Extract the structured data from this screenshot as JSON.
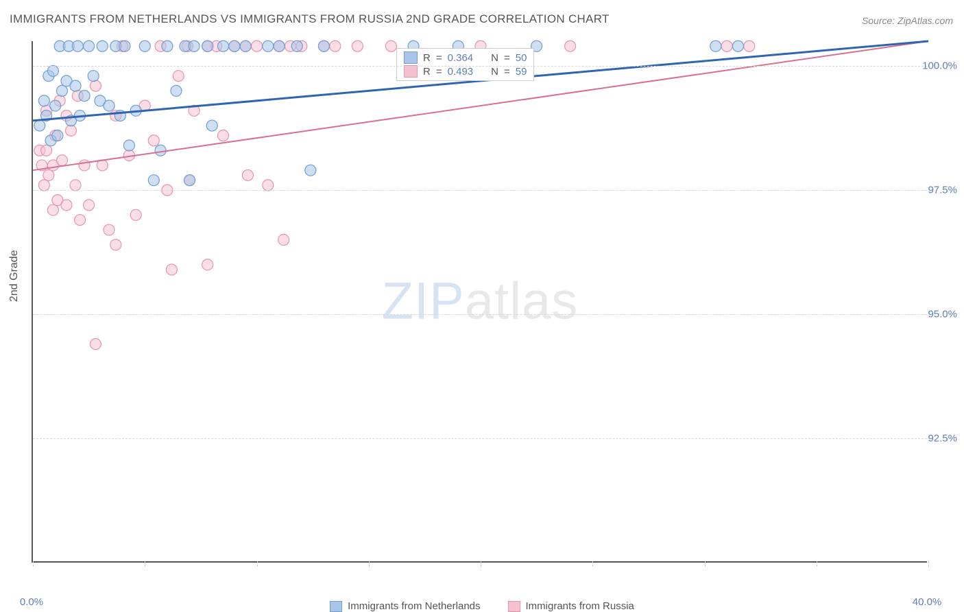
{
  "title": "IMMIGRANTS FROM NETHERLANDS VS IMMIGRANTS FROM RUSSIA 2ND GRADE CORRELATION CHART",
  "source": "Source: ZipAtlas.com",
  "y_axis_label": "2nd Grade",
  "watermark": {
    "part1": "ZIP",
    "part2": "atlas"
  },
  "colors": {
    "series_a_fill": "#a8c5e8",
    "series_a_stroke": "#6f9dd6",
    "series_b_fill": "#f4c2cf",
    "series_b_stroke": "#e893ab",
    "axis": "#555555",
    "grid": "#d8d8d8",
    "tick_text": "#5a7fb8",
    "title_text": "#555555",
    "trend_a": "#2f65b0",
    "trend_b": "#d96e8f",
    "background": "#ffffff"
  },
  "chart": {
    "type": "scatter",
    "xlim": [
      0.0,
      40.0
    ],
    "ylim": [
      90.0,
      100.5
    ],
    "x_ticks": [
      0.0,
      5.0,
      10.0,
      15.0,
      20.0,
      25.0,
      30.0,
      35.0,
      40.0
    ],
    "x_tick_labels": {
      "0": "0.0%",
      "40": "40.0%"
    },
    "y_ticks": [
      92.5,
      95.0,
      97.5,
      100.0
    ],
    "y_tick_labels": [
      "92.5%",
      "95.0%",
      "97.5%",
      "100.0%"
    ],
    "marker_radius": 8,
    "marker_opacity": 0.55,
    "line_width_a": 3,
    "line_width_b": 2,
    "title_fontsize": 17,
    "label_fontsize": 16,
    "tick_fontsize": 15
  },
  "legend_top": {
    "rows": [
      {
        "series": "a",
        "r_label": "R",
        "r_value": "0.364",
        "n_label": "N",
        "n_value": "50"
      },
      {
        "series": "b",
        "r_label": "R",
        "r_value": "0.493",
        "n_label": "N",
        "n_value": "59"
      }
    ]
  },
  "legend_bottom": {
    "items": [
      {
        "series": "a",
        "label": "Immigrants from Netherlands"
      },
      {
        "series": "b",
        "label": "Immigrants from Russia"
      }
    ]
  },
  "series_a": {
    "name": "Immigrants from Netherlands",
    "trend": {
      "x1": 0.0,
      "y1": 98.9,
      "x2": 40.0,
      "y2": 100.5
    },
    "points": [
      [
        0.3,
        98.8
      ],
      [
        0.5,
        99.3
      ],
      [
        0.6,
        99.0
      ],
      [
        0.7,
        99.8
      ],
      [
        0.8,
        98.5
      ],
      [
        0.9,
        99.9
      ],
      [
        1.0,
        99.2
      ],
      [
        1.1,
        98.6
      ],
      [
        1.2,
        100.4
      ],
      [
        1.3,
        99.5
      ],
      [
        1.5,
        99.7
      ],
      [
        1.6,
        100.4
      ],
      [
        1.7,
        98.9
      ],
      [
        1.9,
        99.6
      ],
      [
        2.0,
        100.4
      ],
      [
        2.1,
        99.0
      ],
      [
        2.3,
        99.4
      ],
      [
        2.5,
        100.4
      ],
      [
        2.7,
        99.8
      ],
      [
        3.0,
        99.3
      ],
      [
        3.1,
        100.4
      ],
      [
        3.4,
        99.2
      ],
      [
        3.7,
        100.4
      ],
      [
        3.9,
        99.0
      ],
      [
        4.1,
        100.4
      ],
      [
        4.3,
        98.4
      ],
      [
        4.6,
        99.1
      ],
      [
        5.0,
        100.4
      ],
      [
        5.4,
        97.7
      ],
      [
        5.7,
        98.3
      ],
      [
        6.0,
        100.4
      ],
      [
        6.4,
        99.5
      ],
      [
        6.8,
        100.4
      ],
      [
        7.0,
        97.7
      ],
      [
        7.2,
        100.4
      ],
      [
        7.8,
        100.4
      ],
      [
        8.0,
        98.8
      ],
      [
        8.5,
        100.4
      ],
      [
        9.0,
        100.4
      ],
      [
        9.5,
        100.4
      ],
      [
        10.5,
        100.4
      ],
      [
        11.0,
        100.4
      ],
      [
        11.8,
        100.4
      ],
      [
        12.4,
        97.9
      ],
      [
        13.0,
        100.4
      ],
      [
        17.0,
        100.4
      ],
      [
        19.0,
        100.4
      ],
      [
        22.5,
        100.4
      ],
      [
        30.5,
        100.4
      ],
      [
        31.5,
        100.4
      ]
    ]
  },
  "series_b": {
    "name": "Immigrants from Russia",
    "trend": {
      "x1": 0.0,
      "y1": 97.9,
      "x2": 40.0,
      "y2": 100.5
    },
    "points": [
      [
        0.3,
        98.3
      ],
      [
        0.4,
        98.0
      ],
      [
        0.5,
        97.6
      ],
      [
        0.6,
        98.3
      ],
      [
        0.6,
        99.1
      ],
      [
        0.7,
        97.8
      ],
      [
        0.9,
        98.0
      ],
      [
        0.9,
        97.1
      ],
      [
        1.0,
        98.6
      ],
      [
        1.1,
        97.3
      ],
      [
        1.2,
        99.3
      ],
      [
        1.3,
        98.1
      ],
      [
        1.5,
        99.0
      ],
      [
        1.5,
        97.2
      ],
      [
        1.7,
        98.7
      ],
      [
        1.9,
        97.6
      ],
      [
        2.0,
        99.4
      ],
      [
        2.1,
        96.9
      ],
      [
        2.3,
        98.0
      ],
      [
        2.5,
        97.2
      ],
      [
        2.8,
        99.6
      ],
      [
        2.8,
        94.4
      ],
      [
        3.1,
        98.0
      ],
      [
        3.4,
        96.7
      ],
      [
        3.7,
        99.0
      ],
      [
        3.7,
        96.4
      ],
      [
        4.0,
        100.4
      ],
      [
        4.3,
        98.2
      ],
      [
        4.6,
        97.0
      ],
      [
        5.0,
        99.2
      ],
      [
        5.4,
        98.5
      ],
      [
        5.7,
        100.4
      ],
      [
        6.0,
        97.5
      ],
      [
        6.2,
        95.9
      ],
      [
        6.5,
        99.8
      ],
      [
        6.9,
        100.4
      ],
      [
        7.0,
        97.7
      ],
      [
        7.2,
        99.1
      ],
      [
        7.8,
        100.4
      ],
      [
        7.8,
        96.0
      ],
      [
        8.2,
        100.4
      ],
      [
        8.5,
        98.6
      ],
      [
        9.0,
        100.4
      ],
      [
        9.5,
        100.4
      ],
      [
        9.6,
        97.8
      ],
      [
        10.0,
        100.4
      ],
      [
        10.5,
        97.6
      ],
      [
        11.0,
        100.4
      ],
      [
        11.2,
        96.5
      ],
      [
        11.5,
        100.4
      ],
      [
        12.0,
        100.4
      ],
      [
        13.0,
        100.4
      ],
      [
        13.5,
        100.4
      ],
      [
        14.5,
        100.4
      ],
      [
        16.0,
        100.4
      ],
      [
        20.0,
        100.4
      ],
      [
        24.0,
        100.4
      ],
      [
        31.0,
        100.4
      ],
      [
        32.0,
        100.4
      ]
    ]
  }
}
